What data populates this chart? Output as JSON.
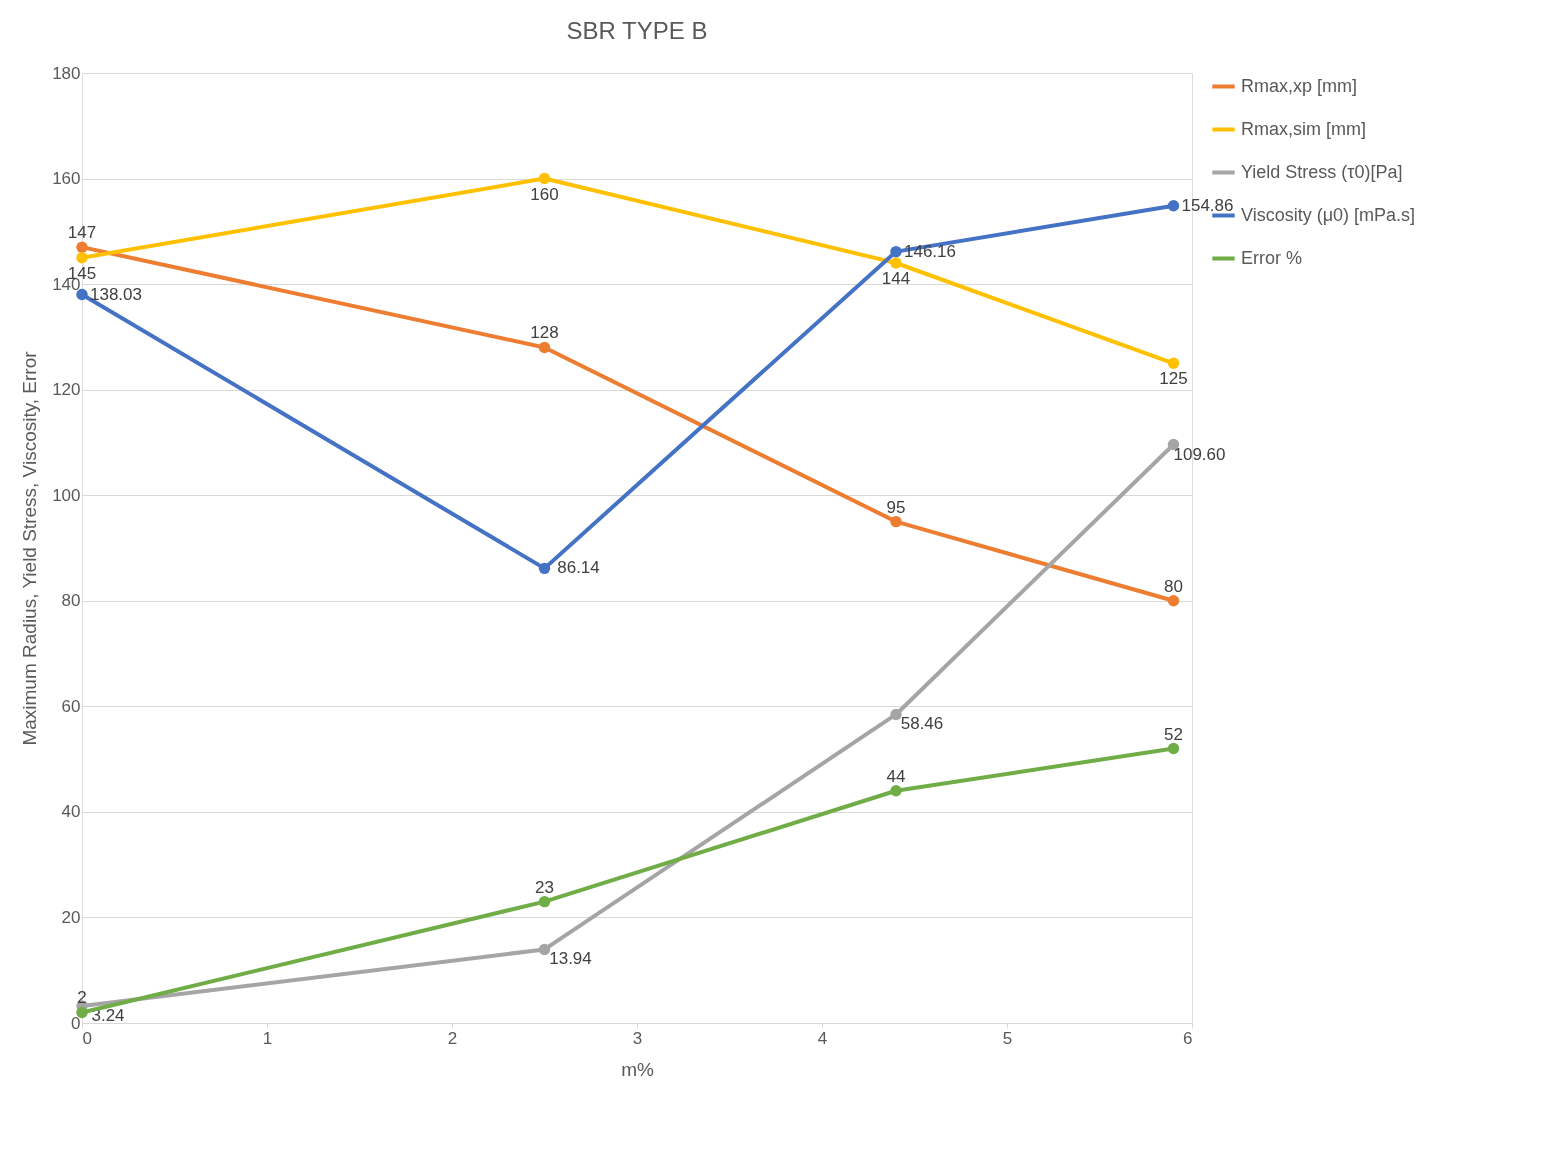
{
  "chart_data": {
    "type": "line",
    "title": "SBR TYPE B",
    "xlabel": "m%",
    "ylabel": "Maximum Radius, Yield Stress, Viscosity, Error",
    "x": [
      0,
      2.5,
      4.4,
      5.9
    ],
    "series": [
      {
        "name": "Rmax,xp [mm]",
        "color": "#ed7d31",
        "values": [
          147,
          128,
          95,
          80
        ],
        "value_labels": [
          "147",
          "128",
          "95",
          "80"
        ]
      },
      {
        "name": "Rmax,sim [mm]",
        "color": "#ffc000",
        "values": [
          145,
          160,
          144,
          125
        ],
        "value_labels": [
          "145",
          "160",
          "144",
          "125"
        ]
      },
      {
        "name": "Yield Stress (τ0)[Pa]",
        "color": "#a5a5a5",
        "values": [
          3.24,
          13.94,
          58.46,
          109.6
        ],
        "value_labels": [
          "3.24",
          "13.94",
          "58.46",
          "109.60"
        ]
      },
      {
        "name": "Viscosity (μ0) [mPa.s]",
        "color": "#4472c4",
        "values": [
          138.03,
          86.14,
          146.16,
          154.86
        ],
        "value_labels": [
          "138.03",
          "86.14",
          "146.16",
          "154.86"
        ]
      },
      {
        "name": "Error %",
        "color": "#70ad47",
        "values": [
          2,
          23,
          44,
          52
        ],
        "value_labels": [
          "2",
          "23",
          "44",
          "52"
        ]
      }
    ],
    "xlim": [
      0,
      6
    ],
    "xticks": [
      0,
      1,
      2,
      3,
      4,
      5,
      6
    ],
    "ylim": [
      0,
      180
    ],
    "yticks": [
      0,
      20,
      40,
      60,
      80,
      100,
      120,
      140,
      160,
      180
    ],
    "grid": "y",
    "legend": "right",
    "marker": "circle",
    "line_style": "solid"
  }
}
